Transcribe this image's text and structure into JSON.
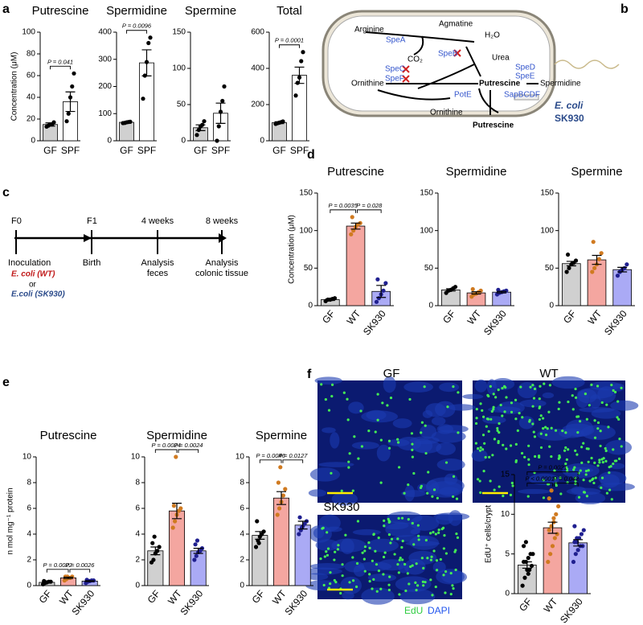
{
  "letters": [
    "a",
    "b",
    "c",
    "d",
    "e",
    "f"
  ],
  "chart_data": [
    {
      "type": "bar",
      "title": "Putrescine",
      "ylabel": "Concentration (μM)",
      "categories": [
        "GF",
        "SPF"
      ],
      "values": [
        15,
        36
      ],
      "errors": [
        1.5,
        9
      ],
      "points": [
        [
          13,
          14,
          15,
          15,
          17
        ],
        [
          18,
          25,
          40,
          50,
          62
        ]
      ],
      "colors": [
        "#d0d0d0",
        "#ffffff"
      ],
      "point_colors": [
        "#000000",
        "#000000"
      ],
      "ylim": [
        0,
        100
      ],
      "yticks": [
        0,
        20,
        40,
        60,
        80,
        100
      ],
      "comparisons": [
        {
          "label": "P = 0.041",
          "between": [
            "GF",
            "SPF"
          ]
        }
      ]
    },
    {
      "type": "bar",
      "title": "Spermidine",
      "categories": [
        "GF",
        "SPF"
      ],
      "values": [
        68,
        287
      ],
      "errors": [
        2,
        48
      ],
      "points": [
        [
          65,
          66,
          68,
          69,
          70
        ],
        [
          155,
          240,
          290,
          360,
          380
        ]
      ],
      "colors": [
        "#d0d0d0",
        "#ffffff"
      ],
      "point_colors": [
        "#000000",
        "#000000"
      ],
      "ylim": [
        0,
        400
      ],
      "yticks": [
        0,
        100,
        200,
        300,
        400
      ],
      "comparisons": [
        {
          "label": "P = 0.0096",
          "between": [
            "GF",
            "SPF"
          ]
        }
      ]
    },
    {
      "type": "bar",
      "title": "Spermine",
      "categories": [
        "GF",
        "SPF"
      ],
      "values": [
        18,
        38
      ],
      "errors": [
        4,
        14
      ],
      "points": [
        [
          8,
          15,
          20,
          22,
          27
        ],
        [
          0,
          20,
          40,
          55,
          75
        ]
      ],
      "colors": [
        "#d0d0d0",
        "#ffffff"
      ],
      "point_colors": [
        "#000000",
        "#000000"
      ],
      "ylim": [
        0,
        150
      ],
      "yticks": [
        0,
        50,
        100,
        150
      ],
      "comparisons": []
    },
    {
      "type": "bar",
      "title": "Total",
      "categories": [
        "GF",
        "SPF"
      ],
      "values": [
        100,
        362
      ],
      "errors": [
        5,
        45
      ],
      "points": [
        [
          93,
          97,
          100,
          103,
          107
        ],
        [
          250,
          320,
          350,
          440,
          490
        ]
      ],
      "colors": [
        "#d0d0d0",
        "#ffffff"
      ],
      "point_colors": [
        "#000000",
        "#000000"
      ],
      "ylim": [
        0,
        600
      ],
      "yticks": [
        0,
        200,
        400,
        600
      ],
      "comparisons": [
        {
          "label": "P = 0.0001",
          "between": [
            "GF",
            "SPF"
          ]
        }
      ]
    },
    {
      "type": "bar",
      "title": "Putrescine",
      "ylabel": "Concentration (μM)",
      "categories": [
        "GF",
        "WT",
        "SK930"
      ],
      "values": [
        8,
        106,
        19
      ],
      "errors": [
        1,
        4,
        8
      ],
      "points": [
        [
          6,
          8,
          8,
          9,
          10
        ],
        [
          95,
          100,
          105,
          108,
          110,
          118
        ],
        [
          5,
          10,
          15,
          20,
          30,
          35
        ]
      ],
      "colors": [
        "#d0d0d0",
        "#f4a6a0",
        "#aaaaf5"
      ],
      "point_colors": [
        "#000000",
        "#d07a20",
        "#202090"
      ],
      "ylim": [
        0,
        150
      ],
      "yticks": [
        0,
        50,
        100,
        150
      ],
      "comparisons": [
        {
          "label": "P = 0.0035",
          "between": [
            "GF",
            "WT"
          ]
        },
        {
          "label": "P = 0.028",
          "between": [
            "WT",
            "SK930"
          ]
        }
      ]
    },
    {
      "type": "bar",
      "title": "Spermidine",
      "categories": [
        "GF",
        "WT",
        "SK930"
      ],
      "values": [
        21,
        17,
        18
      ],
      "errors": [
        1.5,
        1.5,
        1
      ],
      "points": [
        [
          17,
          20,
          21,
          23,
          25
        ],
        [
          12,
          15,
          16,
          18,
          20,
          22
        ],
        [
          15,
          17,
          18,
          19,
          20,
          21
        ]
      ],
      "colors": [
        "#d0d0d0",
        "#f4a6a0",
        "#aaaaf5"
      ],
      "point_colors": [
        "#000000",
        "#d07a20",
        "#202090"
      ],
      "ylim": [
        0,
        150
      ],
      "yticks": [
        0,
        50,
        100,
        150
      ],
      "comparisons": []
    },
    {
      "type": "bar",
      "title": "Spermine",
      "categories": [
        "GF",
        "WT",
        "SK930"
      ],
      "values": [
        56,
        61,
        48
      ],
      "errors": [
        3,
        6,
        3
      ],
      "points": [
        [
          45,
          50,
          55,
          57,
          60,
          68
        ],
        [
          45,
          50,
          55,
          62,
          70,
          85
        ],
        [
          40,
          45,
          48,
          50,
          55
        ]
      ],
      "colors": [
        "#d0d0d0",
        "#f4a6a0",
        "#aaaaf5"
      ],
      "point_colors": [
        "#000000",
        "#d07a20",
        "#202090"
      ],
      "ylim": [
        0,
        150
      ],
      "yticks": [
        0,
        50,
        100,
        150
      ],
      "comparisons": []
    },
    {
      "type": "bar",
      "title": "Putrescine",
      "ylabel": "n mol mg⁻¹ protein",
      "categories": [
        "GF",
        "WT",
        "SK930"
      ],
      "values": [
        0.25,
        0.6,
        0.35
      ],
      "errors": [
        0.03,
        0.05,
        0.03
      ],
      "points": [
        [
          0.1,
          0.2,
          0.25,
          0.3,
          0.3,
          0.35,
          0.25
        ],
        [
          0.4,
          0.5,
          0.6,
          0.6,
          0.7,
          0.7,
          0.7
        ],
        [
          0.2,
          0.3,
          0.35,
          0.4,
          0.4,
          0.45,
          0.35
        ]
      ],
      "colors": [
        "#d0d0d0",
        "#f4a6a0",
        "#aaaaf5"
      ],
      "point_colors": [
        "#000000",
        "#d07a20",
        "#202090"
      ],
      "ylim": [
        0,
        10
      ],
      "yticks": [
        0,
        2,
        4,
        6,
        8,
        10
      ],
      "comparisons": [
        {
          "label": "P = 0.0022",
          "between": [
            "GF",
            "WT"
          ]
        },
        {
          "label": "P = 0.0026",
          "between": [
            "WT",
            "SK930"
          ]
        }
      ]
    },
    {
      "type": "bar",
      "title": "Spermidine",
      "categories": [
        "GF",
        "WT",
        "SK930"
      ],
      "values": [
        2.7,
        5.8,
        2.7
      ],
      "errors": [
        0.3,
        0.6,
        0.2
      ],
      "points": [
        [
          1.8,
          2,
          2.5,
          2.7,
          3,
          3.3,
          3.8
        ],
        [
          4.5,
          5,
          5.5,
          5.8,
          6,
          6.2,
          10
        ],
        [
          2,
          2.3,
          2.6,
          2.7,
          2.9,
          3.2,
          3.5
        ]
      ],
      "colors": [
        "#d0d0d0",
        "#f4a6a0",
        "#aaaaf5"
      ],
      "point_colors": [
        "#000000",
        "#d07a20",
        "#202090"
      ],
      "ylim": [
        0,
        10
      ],
      "yticks": [
        0,
        2,
        4,
        6,
        8,
        10
      ],
      "comparisons": [
        {
          "label": "P = 0.0024",
          "between": [
            "GF",
            "WT"
          ]
        },
        {
          "label": "P = 0.0024",
          "between": [
            "WT",
            "SK930"
          ]
        }
      ]
    },
    {
      "type": "bar",
      "title": "Spermine",
      "categories": [
        "GF",
        "WT",
        "SK930"
      ],
      "values": [
        3.9,
        6.8,
        4.7
      ],
      "errors": [
        0.3,
        0.5,
        0.3
      ],
      "points": [
        [
          3,
          3.5,
          3.8,
          4,
          4.2,
          5,
          3.3
        ],
        [
          5.5,
          6,
          6.5,
          7,
          7.5,
          8,
          9.2
        ],
        [
          4,
          4.3,
          4.6,
          4.8,
          5,
          5.3,
          4.5
        ]
      ],
      "colors": [
        "#d0d0d0",
        "#f4a6a0",
        "#aaaaf5"
      ],
      "point_colors": [
        "#000000",
        "#d07a20",
        "#202090"
      ],
      "ylim": [
        0,
        10
      ],
      "yticks": [
        0,
        2,
        4,
        6,
        8,
        10
      ],
      "comparisons": [
        {
          "label": "P = 0.0046",
          "between": [
            "GF",
            "WT"
          ]
        },
        {
          "label": "P = 0.0127",
          "between": [
            "WT",
            "SK930"
          ]
        }
      ]
    },
    {
      "type": "bar",
      "ylabel": "EdU⁺ cells/crypt",
      "categories": [
        "GF",
        "WT",
        "SK930"
      ],
      "values": [
        3.6,
        8.3,
        6.4
      ],
      "errors": [
        0.4,
        0.7,
        0.4
      ],
      "points": [
        [
          1,
          2,
          3,
          3,
          3.5,
          4,
          4,
          4.5,
          5,
          5,
          6,
          6.5,
          2.5
        ],
        [
          4,
          5,
          6,
          7,
          7.5,
          8,
          8.5,
          9,
          10,
          11,
          12,
          13,
          9.5
        ],
        [
          4,
          5,
          5.5,
          6,
          6,
          6.5,
          7,
          7,
          7.5,
          8,
          8.5,
          6.5
        ]
      ],
      "colors": [
        "#d0d0d0",
        "#f4a6a0",
        "#aaaaf5"
      ],
      "point_colors": [
        "#000000",
        "#d07a20",
        "#202090"
      ],
      "ylim": [
        0,
        15
      ],
      "yticks": [
        0,
        5,
        10,
        15
      ],
      "comparisons": [
        {
          "label": "P < 0.0001",
          "between": [
            "GF",
            "WT"
          ]
        },
        {
          "label": "P = 0.042",
          "between": [
            "WT",
            "SK930"
          ]
        },
        {
          "label": "P = 0.0021",
          "between": [
            "GF",
            "SK930"
          ]
        }
      ]
    }
  ],
  "diagram": {
    "arginine": "Arginine",
    "spea": "SpeA",
    "co2": "CO₂",
    "agmatine": "Agmatine",
    "h2o": "H₂O",
    "speb": "SpeB",
    "urea": "Urea",
    "spec": "SpeC",
    "spef": "SpeF",
    "sped": "SpeD",
    "spee": "SpeE",
    "ornithine_in": "Ornithine",
    "putrescine_in": "Putrescine",
    "spermidine": "Spermidine",
    "pote": "PotE",
    "sapbcdf": "SapBCDF",
    "ornithine_out": "Ornithine",
    "putrescine_out": "Putrescine",
    "species": "E. coli",
    "strain": "SK930"
  },
  "timeline": {
    "f0": "F0",
    "f1": "F1",
    "w4": "4 weeks",
    "w8": "8 weeks",
    "inoculation": "Inoculation",
    "birth": "Birth",
    "analysis1": "Analysis",
    "feces": "feces",
    "analysis2": "Analysis",
    "tissue": "colonic tissue",
    "wt": "E. coli (WT)",
    "or": "or",
    "sk": "E.coli (SK930)"
  },
  "micrographs": {
    "gf": "GF",
    "wt": "WT",
    "sk": "SK930",
    "edu": "EdU",
    "dapi": "DAPI"
  }
}
